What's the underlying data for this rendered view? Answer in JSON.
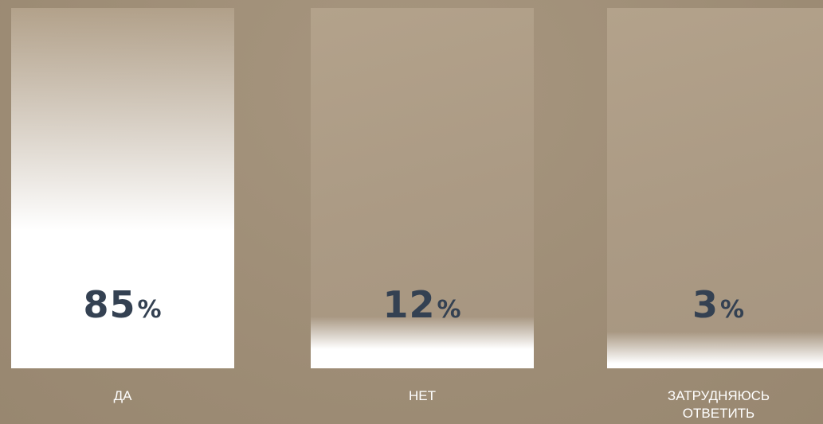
{
  "colors": {
    "background": "#a08f78",
    "value_text": "#344152",
    "label_text": "#ffffff",
    "fill": "#ffffff"
  },
  "chart_data": {
    "type": "bar",
    "categories": [
      "ДА",
      "НЕТ",
      "ЗАТРУДНЯЮСЬ ОТВЕТИТЬ"
    ],
    "values": [
      85,
      12,
      3
    ],
    "value_labels": [
      "85",
      "12",
      "3"
    ],
    "unit": "%",
    "ylim": [
      0,
      100
    ],
    "grid": false,
    "legend": "none"
  }
}
